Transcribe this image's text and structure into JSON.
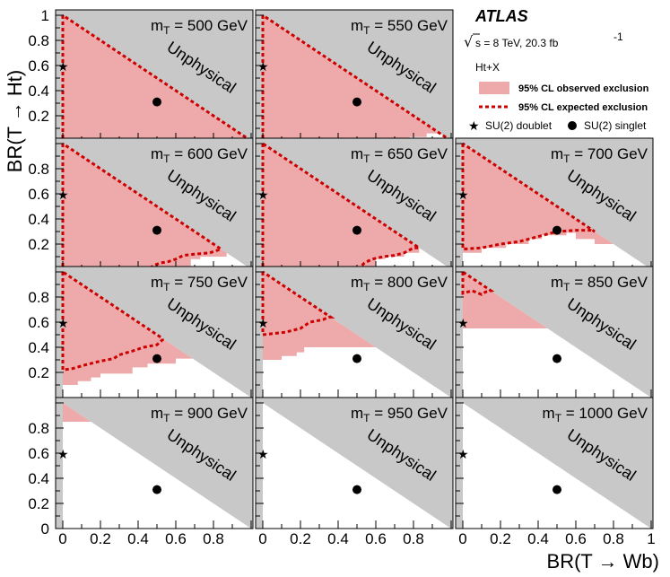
{
  "chart_data": {
    "type": "area",
    "experiment": "ATLAS",
    "energy_lumi_prefix": "s = 8 TeV, 20.3  fb",
    "energy_lumi_exp": "-1",
    "channel": "Ht+X",
    "xlabel": "BR(T → Wb)",
    "ylabel": "BR(T → Ht)",
    "xlim": [
      0,
      1
    ],
    "ylim": [
      0,
      1
    ],
    "x_ticks": [
      "0",
      "0.2",
      "0.4",
      "0.6",
      "0.8",
      "1"
    ],
    "y_ticks": [
      "0.2",
      "0.4",
      "0.6",
      "0.8",
      "1"
    ],
    "unphysical_label": "Unphysical",
    "legend": {
      "observed": "95% CL observed exclusion",
      "expected": "95% CL expected exclusion",
      "doublet": "SU(2) doublet",
      "singlet": "SU(2) singlet"
    },
    "colors": {
      "observed_fill": "#eeaaaa",
      "expected_line": "#cc0000",
      "unphysical_fill": "#c8c8c8"
    },
    "doublet_point": [
      0,
      0.6
    ],
    "singlet_point": [
      0.5,
      0.31
    ],
    "panels": [
      {
        "label": "m",
        "sub": "T",
        "value": " = 500 GeV",
        "observed": [
          [
            0,
            0
          ],
          [
            1,
            0
          ]
        ],
        "expected": [
          [
            0,
            0
          ],
          [
            1,
            0
          ]
        ]
      },
      {
        "label": "m",
        "sub": "T",
        "value": " = 550 GeV",
        "observed": [
          [
            0,
            0
          ],
          [
            0.78,
            0
          ],
          [
            0.78,
            0.03
          ],
          [
            0.87,
            0.03
          ],
          [
            0.87,
            0.06
          ],
          [
            0.94,
            0.06
          ]
        ],
        "expected": [
          [
            0,
            0
          ],
          [
            1,
            0
          ]
        ]
      },
      {
        "label": "m",
        "sub": "T",
        "value": " = 600 GeV",
        "observed": [
          [
            0,
            0
          ],
          [
            0.68,
            0
          ],
          [
            0.68,
            0.08
          ],
          [
            0.73,
            0.08
          ],
          [
            0.73,
            0.1
          ],
          [
            0.87,
            0.1
          ],
          [
            0.87,
            0.13
          ]
        ],
        "expected": [
          [
            0,
            0
          ],
          [
            0.46,
            0
          ],
          [
            0.48,
            0.03
          ],
          [
            0.52,
            0.05
          ],
          [
            0.56,
            0.06
          ],
          [
            0.6,
            0.08
          ],
          [
            0.64,
            0.11
          ],
          [
            0.7,
            0.12
          ],
          [
            0.78,
            0.13
          ],
          [
            0.84,
            0.16
          ]
        ]
      },
      {
        "label": "m",
        "sub": "T",
        "value": " = 650 GeV",
        "observed": [
          [
            0,
            0
          ],
          [
            0.6,
            0
          ],
          [
            0.6,
            0.08
          ],
          [
            0.65,
            0.08
          ],
          [
            0.65,
            0.1
          ],
          [
            0.75,
            0.1
          ],
          [
            0.75,
            0.13
          ],
          [
            0.83,
            0.13
          ],
          [
            0.83,
            0.17
          ]
        ],
        "expected": [
          [
            0,
            0
          ],
          [
            0.5,
            0
          ],
          [
            0.52,
            0.02
          ],
          [
            0.54,
            0.05
          ],
          [
            0.58,
            0.08
          ],
          [
            0.64,
            0.1
          ],
          [
            0.7,
            0.11
          ],
          [
            0.75,
            0.13
          ],
          [
            0.8,
            0.17
          ]
        ]
      },
      {
        "label": "m",
        "sub": "T",
        "value": " = 700 GeV",
        "observed": [
          [
            0,
            0.13
          ],
          [
            0.1,
            0.13
          ],
          [
            0.1,
            0.17
          ],
          [
            0.23,
            0.17
          ],
          [
            0.23,
            0.2
          ],
          [
            0.35,
            0.2
          ],
          [
            0.35,
            0.24
          ],
          [
            0.42,
            0.24
          ],
          [
            0.42,
            0.27
          ],
          [
            0.55,
            0.27
          ],
          [
            0.55,
            0.29
          ],
          [
            0.6,
            0.29
          ],
          [
            0.6,
            0.24
          ],
          [
            0.7,
            0.24
          ],
          [
            0.7,
            0.2
          ],
          [
            0.8,
            0.2
          ]
        ],
        "expected": [
          [
            0,
            0.16
          ],
          [
            0.1,
            0.17
          ],
          [
            0.2,
            0.2
          ],
          [
            0.3,
            0.22
          ],
          [
            0.4,
            0.26
          ],
          [
            0.5,
            0.3
          ],
          [
            0.6,
            0.31
          ],
          [
            0.68,
            0.31
          ],
          [
            0.7,
            0.3
          ]
        ]
      },
      {
        "label": "m",
        "sub": "T",
        "value": " = 750 GeV",
        "observed": [
          [
            0,
            0.1
          ],
          [
            0.08,
            0.1
          ],
          [
            0.08,
            0.13
          ],
          [
            0.15,
            0.13
          ],
          [
            0.15,
            0.16
          ],
          [
            0.2,
            0.16
          ],
          [
            0.2,
            0.19
          ],
          [
            0.37,
            0.19
          ],
          [
            0.37,
            0.24
          ],
          [
            0.45,
            0.24
          ],
          [
            0.45,
            0.27
          ],
          [
            0.6,
            0.27
          ],
          [
            0.6,
            0.31
          ],
          [
            0.69,
            0.31
          ]
        ],
        "expected": [
          [
            0,
            0.22
          ],
          [
            0.05,
            0.23
          ],
          [
            0.12,
            0.26
          ],
          [
            0.2,
            0.29
          ],
          [
            0.27,
            0.31
          ],
          [
            0.3,
            0.34
          ],
          [
            0.37,
            0.37
          ],
          [
            0.43,
            0.4
          ],
          [
            0.5,
            0.42
          ],
          [
            0.53,
            0.46
          ],
          [
            0.54,
            0.47
          ]
        ]
      },
      {
        "label": "m",
        "sub": "T",
        "value": " = 800 GeV",
        "observed": [
          [
            0,
            0.3
          ],
          [
            0.1,
            0.3
          ],
          [
            0.1,
            0.33
          ],
          [
            0.18,
            0.33
          ],
          [
            0.18,
            0.36
          ],
          [
            0.22,
            0.36
          ],
          [
            0.22,
            0.4
          ],
          [
            0.6,
            0.4
          ]
        ],
        "expected": [
          [
            0,
            0.5
          ],
          [
            0.12,
            0.52
          ],
          [
            0.2,
            0.55
          ],
          [
            0.25,
            0.6
          ],
          [
            0.32,
            0.62
          ],
          [
            0.35,
            0.64
          ],
          [
            0.36,
            0.64
          ]
        ]
      },
      {
        "label": "m",
        "sub": "T",
        "value": " = 850 GeV",
        "observed": [
          [
            0,
            0.55
          ],
          [
            0.45,
            0.55
          ]
        ],
        "expected": [
          [
            0,
            0.83
          ],
          [
            0.05,
            0.85
          ],
          [
            0.1,
            0.82
          ],
          [
            0.12,
            0.84
          ],
          [
            0.15,
            0.85
          ]
        ]
      },
      {
        "label": "m",
        "sub": "T",
        "value": " = 900 GeV",
        "observed": [
          [
            0,
            0.85
          ],
          [
            0.15,
            0.85
          ]
        ],
        "expected": []
      },
      {
        "label": "m",
        "sub": "T",
        "value": " = 950 GeV",
        "observed": [],
        "expected": []
      },
      {
        "label": "m",
        "sub": "T",
        "value": " = 1000 GeV",
        "observed": [],
        "expected": []
      }
    ]
  }
}
